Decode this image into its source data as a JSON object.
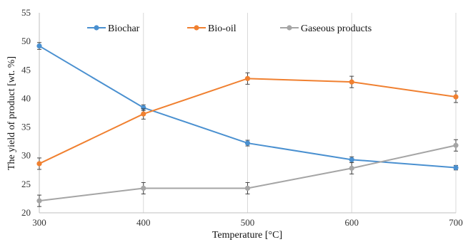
{
  "chart_data": {
    "type": "line",
    "x": [
      300,
      400,
      500,
      600,
      700
    ],
    "xlabel": "Temperature [°C]",
    "ylabel": "The yield of product [wt. %]",
    "xlim": [
      300,
      700
    ],
    "ylim": [
      20,
      55
    ],
    "xticks": [
      "300",
      "400",
      "500",
      "600",
      "700"
    ],
    "yticks": [
      "20",
      "25",
      "30",
      "35",
      "40",
      "45",
      "50",
      "55"
    ],
    "grid": "vertical",
    "legend_position": "top",
    "series": [
      {
        "name": "Biochar",
        "color": "#4A90D0",
        "values": [
          49.2,
          38.4,
          32.2,
          29.3,
          27.9
        ],
        "errors": [
          0.6,
          0.5,
          0.5,
          0.5,
          0.4
        ]
      },
      {
        "name": "Bio-oil",
        "color": "#F08030",
        "values": [
          28.6,
          37.3,
          43.5,
          42.9,
          40.3
        ],
        "errors": [
          1.0,
          0.9,
          1.0,
          1.0,
          1.0
        ]
      },
      {
        "name": "Gaseous  products",
        "color": "#A5A5A5",
        "values": [
          22.1,
          24.3,
          24.3,
          27.8,
          31.8
        ],
        "errors": [
          1.0,
          1.0,
          1.0,
          1.0,
          1.0
        ]
      }
    ]
  }
}
